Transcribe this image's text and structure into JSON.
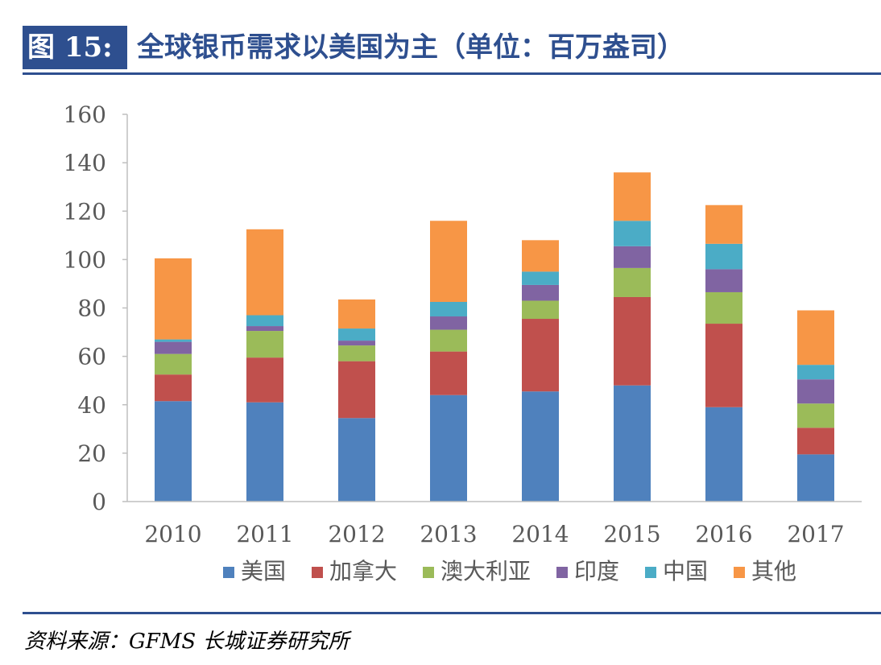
{
  "header": {
    "figure_label": "图 15:",
    "title": "全球银币需求以美国为主（单位：百万盎司）"
  },
  "footer": {
    "source": "资料来源：GFMS 长城证券研究所"
  },
  "colors": {
    "accent": "#2e4f8f",
    "美国": "#4f81bd",
    "加拿大": "#c0504d",
    "澳大利亚": "#9bbb59",
    "印度": "#8064a2",
    "中国": "#4bacc6",
    "其他": "#f79646"
  },
  "chart_data": {
    "type": "bar",
    "stacked": true,
    "title": "",
    "xlabel": "",
    "ylabel": "",
    "ylim": [
      0,
      160
    ],
    "yticks": [
      0,
      20,
      40,
      60,
      80,
      100,
      120,
      140,
      160
    ],
    "grid": false,
    "legend_position": "bottom",
    "categories": [
      "2010",
      "2011",
      "2012",
      "2013",
      "2014",
      "2015",
      "2016",
      "2017"
    ],
    "series": [
      {
        "name": "美国",
        "color": "#4f81bd",
        "values": [
          41.5,
          41,
          34.5,
          44,
          45.5,
          48,
          39,
          19.5
        ]
      },
      {
        "name": "加拿大",
        "color": "#c0504d",
        "values": [
          11,
          18.5,
          23.5,
          18,
          30,
          36.5,
          34.5,
          11
        ]
      },
      {
        "name": "澳大利亚",
        "color": "#9bbb59",
        "values": [
          8.5,
          11,
          6.5,
          9,
          7.5,
          12,
          13,
          10
        ]
      },
      {
        "name": "印度",
        "color": "#8064a2",
        "values": [
          5,
          2,
          2,
          5.5,
          6.5,
          9,
          9.5,
          10
        ]
      },
      {
        "name": "中国",
        "color": "#4bacc6",
        "values": [
          1,
          4.5,
          5,
          6,
          5.5,
          10.5,
          10.5,
          6
        ]
      },
      {
        "name": "其他",
        "color": "#f79646",
        "values": [
          33.5,
          35.5,
          12,
          33.5,
          13,
          20,
          16,
          22.5
        ]
      }
    ]
  }
}
